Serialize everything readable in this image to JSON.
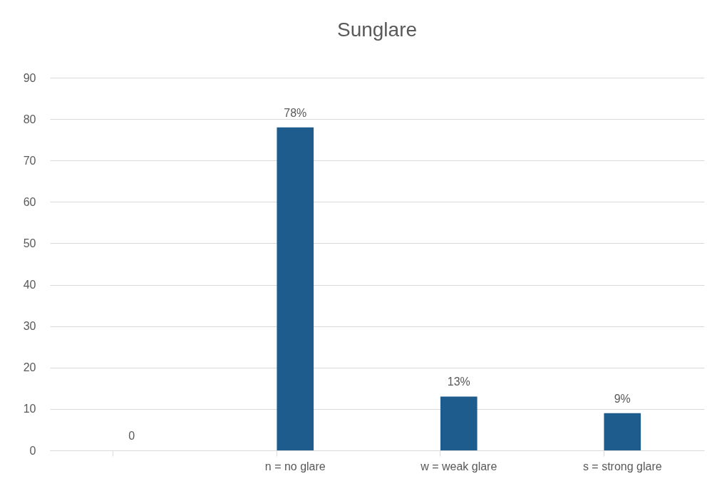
{
  "chart_data": {
    "type": "bar",
    "title": "Sunglare",
    "categories": [
      null,
      "n = no glare",
      "w = weak glare",
      "s = strong glare"
    ],
    "values": [
      0,
      78,
      13,
      9
    ],
    "value_labels": [
      "0",
      "78%",
      "13%",
      "9%"
    ],
    "color": "#1f5c8e",
    "ylim": [
      0,
      90
    ],
    "yticks": [
      0,
      10,
      20,
      30,
      40,
      50,
      60,
      70,
      80,
      90
    ],
    "grid": "y"
  }
}
